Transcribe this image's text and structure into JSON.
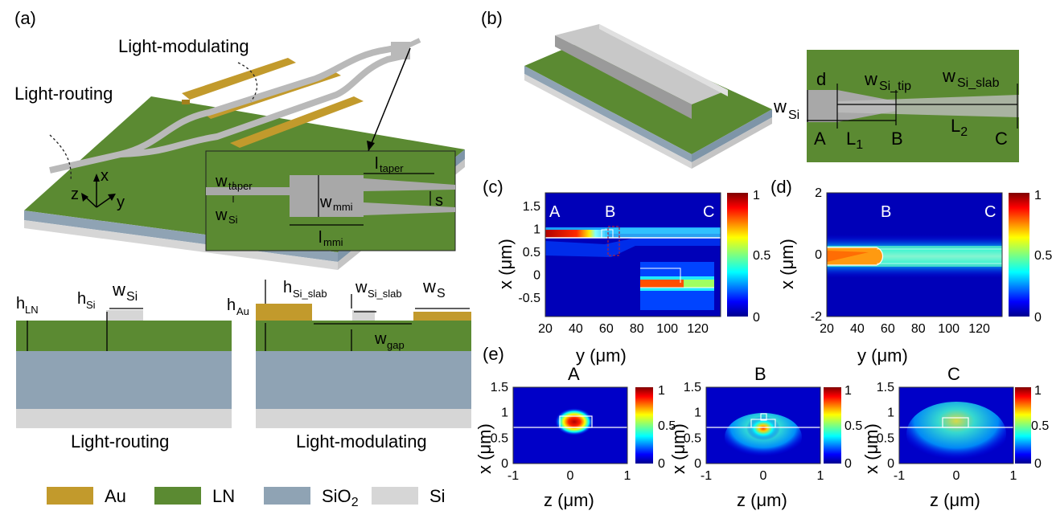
{
  "panels": {
    "a": "(a)",
    "b": "(b)",
    "c": "(c)",
    "d": "(d)",
    "e": "(e)"
  },
  "a": {
    "light_modulating": "Light-modulating",
    "light_routing": "Light-routing",
    "axes": {
      "x": "x",
      "y": "y",
      "z": "z"
    },
    "inset": {
      "w": "w",
      "taper_sub": "taper",
      "mmi_sub": "mmi",
      "si_sub": "Si",
      "l": "l",
      "s": "s"
    },
    "cross_left": {
      "h": "h",
      "ln_sub": "LN",
      "si_sub": "Si",
      "w": "w",
      "caption": "Light-routing"
    },
    "cross_right": {
      "h": "h",
      "au_sub": "Au",
      "si_slab_sub": "Si_slab",
      "w": "w",
      "s_sub": "S",
      "gap_sub": "gap",
      "caption": "Light-modulating"
    }
  },
  "legend": [
    {
      "label": "Au",
      "color": "#c29a2c"
    },
    {
      "label": "LN",
      "color": "#5b8a32"
    },
    {
      "label": "SiO",
      "sub": "2",
      "color": "#8fa3b4"
    },
    {
      "label": "Si",
      "color": "#d6d6d6"
    }
  ],
  "b": {
    "d": "d",
    "w": "w",
    "si_sub": "Si",
    "si_tip_sub": "Si_tip",
    "si_slab_sub": "Si_slab",
    "A": "A",
    "B": "B",
    "C": "C",
    "L": "L",
    "one": "1",
    "two": "2"
  },
  "chart_data": [
    {
      "type": "heatmap",
      "panel": "c",
      "xlabel": "y (μm)",
      "ylabel": "x (μm)",
      "x_ticks": [
        "20",
        "40",
        "60",
        "80",
        "100",
        "120"
      ],
      "y_ticks": [
        "1.5",
        "1",
        "0.5",
        "0",
        "-0.5"
      ],
      "xlim": [
        20,
        135
      ],
      "ylim": [
        -0.9,
        1.8
      ],
      "annotations": [
        "A",
        "B",
        "C"
      ],
      "colorbar": {
        "ticks": [
          "1",
          "0.5",
          "0"
        ],
        "range": [
          0,
          1
        ]
      }
    },
    {
      "type": "heatmap",
      "panel": "d",
      "xlabel": "y (μm)",
      "ylabel": "x (μm)",
      "x_ticks": [
        "20",
        "40",
        "60",
        "80",
        "100",
        "120"
      ],
      "y_ticks": [
        "2",
        "0",
        "-2"
      ],
      "xlim": [
        20,
        135
      ],
      "ylim": [
        -2,
        2
      ],
      "annotations": [
        "A",
        "B",
        "C"
      ],
      "colorbar": {
        "ticks": [
          "1",
          "0.5",
          "0"
        ],
        "range": [
          0,
          1
        ]
      }
    },
    {
      "type": "heatmap",
      "panel": "e",
      "title": "A",
      "xlabel": "z (μm)",
      "ylabel": "x (μm)",
      "x_ticks": [
        "-1",
        "0",
        "1"
      ],
      "y_ticks": [
        "1.5",
        "1",
        "0.5",
        "0"
      ],
      "xlim": [
        -1,
        1
      ],
      "ylim": [
        0,
        1.5
      ],
      "colorbar": {
        "ticks": [
          "1",
          "0.5",
          "0"
        ],
        "range": [
          0,
          1
        ]
      }
    },
    {
      "type": "heatmap",
      "panel": "e",
      "title": "B",
      "xlabel": "z (μm)",
      "ylabel": "x (μm)",
      "x_ticks": [
        "-1",
        "0",
        "1"
      ],
      "y_ticks": [
        "1.5",
        "1",
        "0.5",
        "0"
      ],
      "xlim": [
        -1,
        1
      ],
      "ylim": [
        0,
        1.5
      ],
      "colorbar": {
        "ticks": [
          "1",
          "0.5",
          "0"
        ],
        "range": [
          0,
          1
        ]
      }
    },
    {
      "type": "heatmap",
      "panel": "e",
      "title": "C",
      "xlabel": "z (μm)",
      "ylabel": "x (μm)",
      "x_ticks": [
        "-1",
        "0",
        "1"
      ],
      "y_ticks": [
        "1.5",
        "1",
        "0.5",
        "0"
      ],
      "xlim": [
        -1,
        1
      ],
      "ylim": [
        0,
        1.5
      ],
      "colorbar": {
        "ticks": [
          "1",
          "0.5",
          "0"
        ],
        "range": [
          0,
          1
        ]
      }
    }
  ]
}
